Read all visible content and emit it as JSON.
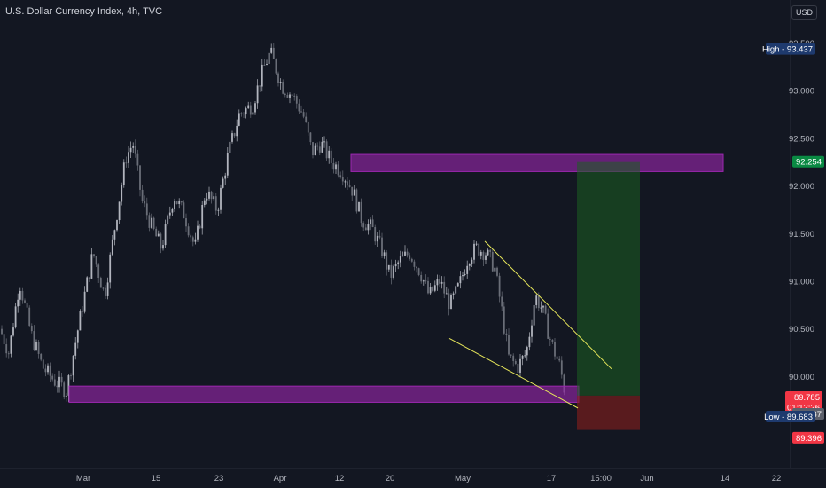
{
  "header": {
    "title": "U.S. Dollar Currency Index, 4h, TVC",
    "currency": "USD"
  },
  "chart_data": {
    "type": "candlestick",
    "y_range": [
      89.25,
      93.55
    ],
    "y_ticks": [
      "93.500",
      "93.000",
      "92.500",
      "92.000",
      "91.500",
      "91.000",
      "90.500",
      "90.000"
    ],
    "y_tick_values": [
      93.5,
      93.0,
      92.5,
      92.0,
      91.5,
      91.0,
      90.5,
      90.0
    ],
    "x_ticks": [
      "Mar",
      "15",
      "23",
      "Apr",
      "12",
      "20",
      "May",
      "17",
      "15:00",
      "Jun",
      "14",
      "22"
    ],
    "price_path": [
      [
        0,
        90.5
      ],
      [
        10,
        90.25
      ],
      [
        22,
        91.0
      ],
      [
        35,
        90.45
      ],
      [
        48,
        90.1
      ],
      [
        62,
        89.95
      ],
      [
        75,
        89.85
      ],
      [
        90,
        90.6
      ],
      [
        105,
        91.3
      ],
      [
        118,
        90.85
      ],
      [
        130,
        91.6
      ],
      [
        142,
        92.3
      ],
      [
        150,
        92.45
      ],
      [
        160,
        91.85
      ],
      [
        172,
        91.55
      ],
      [
        182,
        91.35
      ],
      [
        196,
        91.9
      ],
      [
        208,
        91.7
      ],
      [
        220,
        91.35
      ],
      [
        232,
        91.95
      ],
      [
        245,
        91.75
      ],
      [
        258,
        92.35
      ],
      [
        270,
        92.75
      ],
      [
        285,
        92.85
      ],
      [
        298,
        93.25
      ],
      [
        305,
        93.4
      ],
      [
        318,
        93.05
      ],
      [
        330,
        92.95
      ],
      [
        342,
        92.75
      ],
      [
        352,
        92.35
      ],
      [
        362,
        92.45
      ],
      [
        374,
        92.25
      ],
      [
        386,
        92.15
      ],
      [
        398,
        91.95
      ],
      [
        408,
        91.65
      ],
      [
        420,
        91.55
      ],
      [
        432,
        91.3
      ],
      [
        440,
        91.05
      ],
      [
        450,
        91.2
      ],
      [
        462,
        91.3
      ],
      [
        474,
        91.1
      ],
      [
        484,
        90.85
      ],
      [
        496,
        91.0
      ],
      [
        508,
        90.75
      ],
      [
        518,
        90.95
      ],
      [
        528,
        91.25
      ],
      [
        538,
        91.35
      ],
      [
        548,
        91.3
      ],
      [
        558,
        91.15
      ],
      [
        566,
        90.7
      ],
      [
        574,
        90.2
      ],
      [
        584,
        90.1
      ],
      [
        594,
        90.25
      ],
      [
        604,
        90.85
      ],
      [
        612,
        90.7
      ],
      [
        622,
        90.35
      ],
      [
        632,
        90.1
      ],
      [
        638,
        89.8
      ]
    ],
    "supply_zone": [
      92.15,
      92.33
    ],
    "demand_zone": [
      89.73,
      89.9
    ],
    "wedge_upper": [
      [
        91.42,
        90.08
      ]
    ],
    "wedge_lower": [
      [
        90.4,
        89.67
      ]
    ],
    "position": {
      "entry": 89.8,
      "target": 92.25,
      "stop": 89.44
    },
    "labels": {
      "high": {
        "text": "High",
        "value": "93.437",
        "price": 93.437
      },
      "target": {
        "value": "92.254",
        "price": 92.254
      },
      "last": {
        "value": "89.785",
        "price": 89.785,
        "countdown": "01:12:26"
      },
      "ask": {
        "value": "89.767",
        "price": 89.767
      },
      "low": {
        "text": "Low",
        "value": "89.683",
        "price": 89.683
      },
      "stop": {
        "value": "89.396",
        "price": 89.396
      }
    },
    "colors": {
      "background": "#131722",
      "candle_up": "#b2b5be",
      "candle_down": "#6a6e78",
      "zone": "#9c27b0",
      "wedge": "#e6e65a",
      "profit": "#1b5e20",
      "loss": "#7f1d1d",
      "high_low_badge": "#1e3a6e",
      "target_badge": "#0a8a43",
      "last_badge": "#f23645",
      "ask_badge": "#5d606b",
      "stop_badge": "#f23645"
    }
  }
}
